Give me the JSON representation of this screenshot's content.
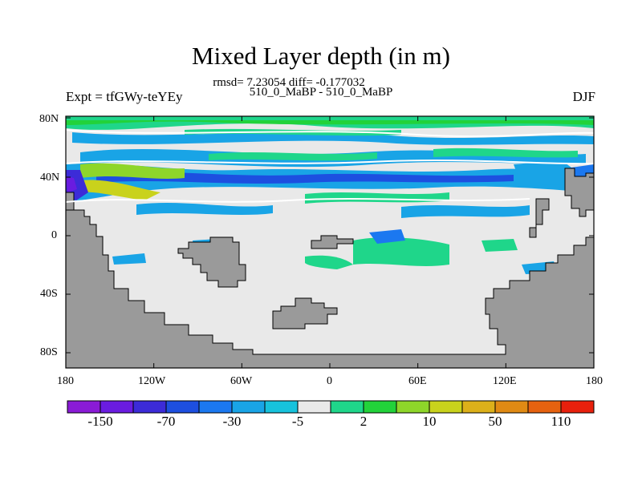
{
  "title": "Mixed Layer depth (in m)",
  "stats": "rmsd= 7.23054  diff= -0.177032",
  "subtitle": "510_0_MaBP - 510_0_MaBP",
  "left_label": "Expt = tfGWy-teYEy",
  "right_label": "DJF",
  "lat_ticks": [
    "80N",
    "40N",
    "0",
    "40S",
    "80S"
  ],
  "lon_ticks": [
    "180",
    "120W",
    "60W",
    "0",
    "60E",
    "120E",
    "180"
  ],
  "colorbar": {
    "colors": [
      "#8a1bd6",
      "#6a1ce0",
      "#3c2bd8",
      "#1d4fe0",
      "#1b78f0",
      "#19a4e6",
      "#17c2dc",
      "#e9e9e9",
      "#1fd68a",
      "#22d23a",
      "#8ed62a",
      "#c9d21c",
      "#dcb01a",
      "#e08a14",
      "#e6620f",
      "#e8200c"
    ],
    "labels": [
      "-150",
      "-70",
      "-30",
      "-5",
      "2",
      "10",
      "50",
      "110"
    ]
  },
  "colors": {
    "land": "#9a9a9a",
    "background_ocean": "#e9e9e9"
  }
}
